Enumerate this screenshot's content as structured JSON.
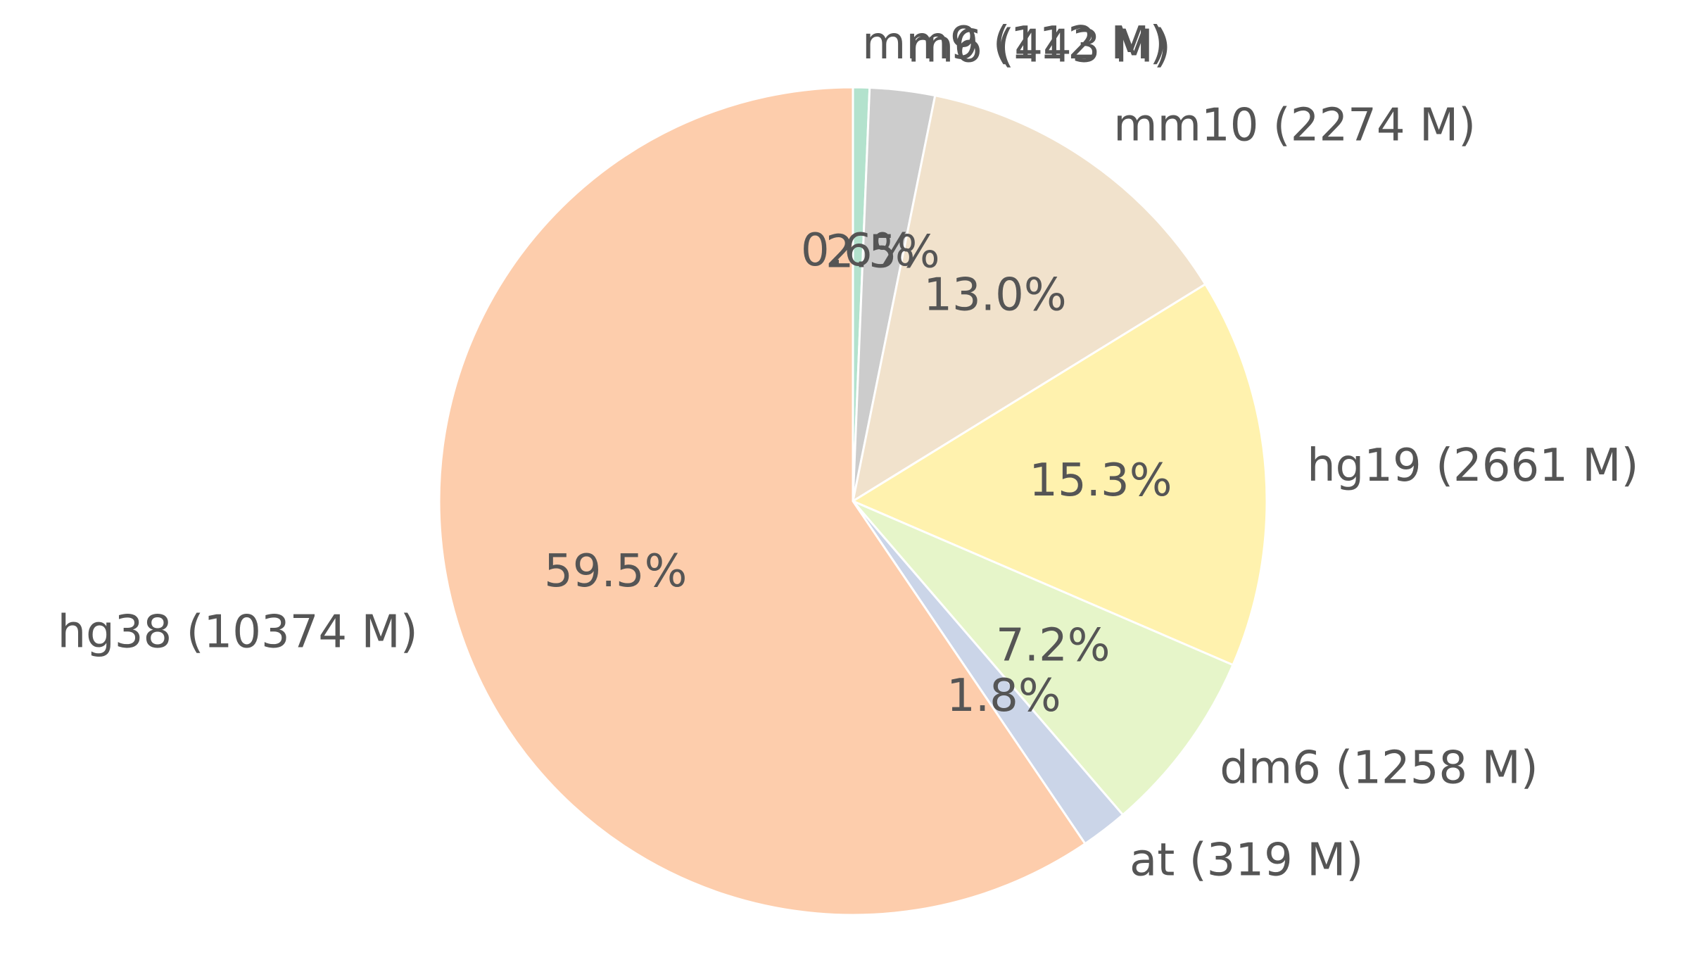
{
  "chart_data": {
    "type": "pie",
    "title": "",
    "start": "top",
    "direction": "clockwise",
    "slices": [
      {
        "name": "mm9",
        "value": 112,
        "label": "mm9 (112 M)",
        "pct_label": "0.6%",
        "color": "#b3e2cd"
      },
      {
        "name": "rn6",
        "value": 443,
        "label": "rn6 (443 M)",
        "pct_label": "2.5%",
        "color": "#cccccc"
      },
      {
        "name": "mm10",
        "value": 2274,
        "label": "mm10 (2274 M)",
        "pct_label": "13.0%",
        "color": "#f1e2cc"
      },
      {
        "name": "hg19",
        "value": 2661,
        "label": "hg19 (2661 M)",
        "pct_label": "15.3%",
        "color": "#fff2ae"
      },
      {
        "name": "dm6",
        "value": 1258,
        "label": "dm6 (1258 M)",
        "pct_label": "7.2%",
        "color": "#e6f5c9"
      },
      {
        "name": "at",
        "value": 319,
        "label": "at (319 M)",
        "pct_label": "1.8%",
        "color": "#cbd5e8"
      },
      {
        "name": "hg38",
        "value": 10374,
        "label": "hg38 (10374 M)",
        "pct_label": "59.5%",
        "color": "#fdcdac"
      }
    ]
  }
}
